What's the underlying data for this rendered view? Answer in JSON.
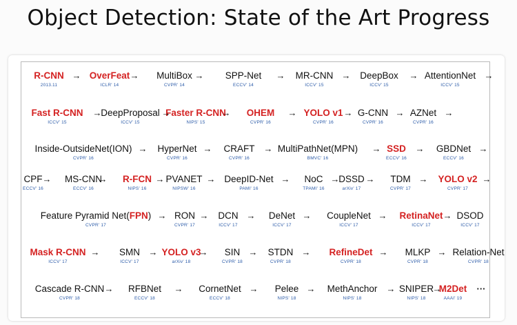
{
  "title": "Object Detection: State of the Art Progress",
  "colors": {
    "highlight": "#d42222",
    "venue": "#2a5aa8",
    "text": "#111111"
  },
  "rows": [
    {
      "items": [
        {
          "name": "R-CNN",
          "venue": "2013.11",
          "highlight": true
        },
        {
          "name": "OverFeat",
          "venue": "ICLR' 14",
          "highlight": true
        },
        {
          "name": "MultiBox",
          "venue": "CVPR' 14",
          "highlight": false
        },
        {
          "name": "SPP-Net",
          "venue": "ECCV' 14",
          "highlight": false
        },
        {
          "name": "MR-CNN",
          "venue": "ICCV' 15",
          "highlight": false
        },
        {
          "name": "DeepBox",
          "venue": "ICCV' 15",
          "highlight": false
        },
        {
          "name": "AttentionNet",
          "venue": "ICCV' 15",
          "highlight": false
        }
      ]
    },
    {
      "items": [
        {
          "name": "Fast R-CNN",
          "venue": "ICCV' 15",
          "highlight": true
        },
        {
          "name": "DeepProposal",
          "venue": "ICCV' 15",
          "highlight": false
        },
        {
          "name": "Faster R-CNN",
          "venue": "NIPS' 15",
          "highlight": true
        },
        {
          "name": "OHEM",
          "venue": "CVPR' 16",
          "highlight": true
        },
        {
          "name": "YOLO v1",
          "venue": "CVPR' 16",
          "highlight": true
        },
        {
          "name": "G-CNN",
          "venue": "CVPR' 16",
          "highlight": false
        },
        {
          "name": "AZNet",
          "venue": "CVPR' 16",
          "highlight": false
        }
      ]
    },
    {
      "items": [
        {
          "name": "Inside-OutsideNet(ION)",
          "venue": "CVPR' 16",
          "highlight": false
        },
        {
          "name": "HyperNet",
          "venue": "CVPR' 16",
          "highlight": false
        },
        {
          "name": "CRAFT",
          "venue": "CVPR' 16",
          "highlight": false
        },
        {
          "name": "MultiPathNet(MPN)",
          "venue": "BMVC' 16",
          "highlight": false
        },
        {
          "name": "SSD",
          "venue": "ECCV' 16",
          "highlight": true
        },
        {
          "name": "GBDNet",
          "venue": "ECCV' 16",
          "highlight": false
        }
      ]
    },
    {
      "items": [
        {
          "name": "CPF",
          "venue": "ECCV' 16",
          "highlight": false
        },
        {
          "name": "MS-CNN",
          "venue": "ECCV' 16",
          "highlight": false
        },
        {
          "name": "R-FCN",
          "venue": "NIPS' 16",
          "highlight": true
        },
        {
          "name": "PVANET",
          "venue": "NIPSW' 16",
          "highlight": false
        },
        {
          "name": "DeepID-Net",
          "venue": "PAMI' 16",
          "highlight": false
        },
        {
          "name": "NoC",
          "venue": "TPAMI' 16",
          "highlight": false
        },
        {
          "name": "DSSD",
          "venue": "arXiv' 17",
          "highlight": false
        },
        {
          "name": "TDM",
          "venue": "CVPR' 17",
          "highlight": false
        },
        {
          "name": "YOLO v2",
          "venue": "CVPR' 17",
          "highlight": true
        }
      ]
    },
    {
      "items": [
        {
          "name": "Feature Pyramid Net(",
          "name_red": "FPN",
          "name_tail": ")",
          "venue": "CVPR' 17",
          "highlight": false
        },
        {
          "name": "RON",
          "venue": "CVPR' 17",
          "highlight": false
        },
        {
          "name": "DCN",
          "venue": "ICCV' 17",
          "highlight": false
        },
        {
          "name": "DeNet",
          "venue": "ICCV' 17",
          "highlight": false
        },
        {
          "name": "CoupleNet",
          "venue": "ICCV' 17",
          "highlight": false
        },
        {
          "name": "RetinaNet",
          "venue": "ICCV' 17",
          "highlight": true
        },
        {
          "name": "DSOD",
          "venue": "ICCV' 17",
          "highlight": false
        }
      ]
    },
    {
      "items": [
        {
          "name": "Mask R-CNN",
          "venue": "ICCV' 17",
          "highlight": true
        },
        {
          "name": "SMN",
          "venue": "ICCV' 17",
          "highlight": false
        },
        {
          "name": "YOLO v3",
          "venue": "arXiv' 18",
          "highlight": true
        },
        {
          "name": "SIN",
          "venue": "CVPR' 18",
          "highlight": false
        },
        {
          "name": "STDN",
          "venue": "CVPR' 18",
          "highlight": false
        },
        {
          "name": "RefineDet",
          "venue": "CVPR' 18",
          "highlight": true
        },
        {
          "name": "MLKP",
          "venue": "CVPR' 18",
          "highlight": false
        },
        {
          "name": "Relation-Net",
          "venue": "CVPR' 18",
          "highlight": false
        }
      ]
    },
    {
      "items": [
        {
          "name": "Cascade R-CNN",
          "venue": "CVPR' 18",
          "highlight": false
        },
        {
          "name": "RFBNet",
          "venue": "ECCV' 18",
          "highlight": false
        },
        {
          "name": "CornetNet",
          "venue": "ECCV' 18",
          "highlight": false
        },
        {
          "name": "Pelee",
          "venue": "NIPS' 18",
          "highlight": false
        },
        {
          "name": "MethAnchor",
          "venue": "NIPS' 18",
          "highlight": false
        },
        {
          "name": "SNIPER",
          "venue": "NIPS' 18",
          "highlight": false
        },
        {
          "name": "M2Det",
          "venue": "AAAI' 19",
          "highlight": true
        }
      ]
    }
  ],
  "trailing_ellipsis": "···"
}
